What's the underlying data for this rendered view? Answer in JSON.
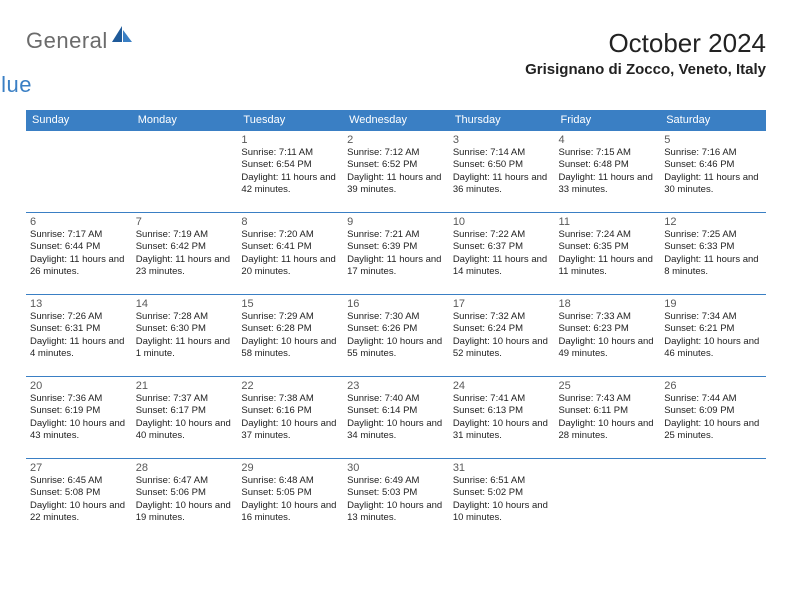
{
  "logo": {
    "general": "General",
    "blue": "Blue"
  },
  "title": "October 2024",
  "location": "Grisignano di Zocco, Veneto, Italy",
  "day_headers": [
    "Sunday",
    "Monday",
    "Tuesday",
    "Wednesday",
    "Thursday",
    "Friday",
    "Saturday"
  ],
  "colors": {
    "header_bg": "#3a7fc4",
    "header_text": "#ffffff",
    "border": "#3a7fc4",
    "day_number": "#595959",
    "text": "#222222",
    "logo_gray": "#6b6b6b",
    "logo_blue": "#3a7fc4",
    "logo_dark_blue": "#1f5a99"
  },
  "weeks": [
    [
      null,
      null,
      {
        "n": "1",
        "sunrise": "Sunrise: 7:11 AM",
        "sunset": "Sunset: 6:54 PM",
        "daylight": "Daylight: 11 hours and 42 minutes."
      },
      {
        "n": "2",
        "sunrise": "Sunrise: 7:12 AM",
        "sunset": "Sunset: 6:52 PM",
        "daylight": "Daylight: 11 hours and 39 minutes."
      },
      {
        "n": "3",
        "sunrise": "Sunrise: 7:14 AM",
        "sunset": "Sunset: 6:50 PM",
        "daylight": "Daylight: 11 hours and 36 minutes."
      },
      {
        "n": "4",
        "sunrise": "Sunrise: 7:15 AM",
        "sunset": "Sunset: 6:48 PM",
        "daylight": "Daylight: 11 hours and 33 minutes."
      },
      {
        "n": "5",
        "sunrise": "Sunrise: 7:16 AM",
        "sunset": "Sunset: 6:46 PM",
        "daylight": "Daylight: 11 hours and 30 minutes."
      }
    ],
    [
      {
        "n": "6",
        "sunrise": "Sunrise: 7:17 AM",
        "sunset": "Sunset: 6:44 PM",
        "daylight": "Daylight: 11 hours and 26 minutes."
      },
      {
        "n": "7",
        "sunrise": "Sunrise: 7:19 AM",
        "sunset": "Sunset: 6:42 PM",
        "daylight": "Daylight: 11 hours and 23 minutes."
      },
      {
        "n": "8",
        "sunrise": "Sunrise: 7:20 AM",
        "sunset": "Sunset: 6:41 PM",
        "daylight": "Daylight: 11 hours and 20 minutes."
      },
      {
        "n": "9",
        "sunrise": "Sunrise: 7:21 AM",
        "sunset": "Sunset: 6:39 PM",
        "daylight": "Daylight: 11 hours and 17 minutes."
      },
      {
        "n": "10",
        "sunrise": "Sunrise: 7:22 AM",
        "sunset": "Sunset: 6:37 PM",
        "daylight": "Daylight: 11 hours and 14 minutes."
      },
      {
        "n": "11",
        "sunrise": "Sunrise: 7:24 AM",
        "sunset": "Sunset: 6:35 PM",
        "daylight": "Daylight: 11 hours and 11 minutes."
      },
      {
        "n": "12",
        "sunrise": "Sunrise: 7:25 AM",
        "sunset": "Sunset: 6:33 PM",
        "daylight": "Daylight: 11 hours and 8 minutes."
      }
    ],
    [
      {
        "n": "13",
        "sunrise": "Sunrise: 7:26 AM",
        "sunset": "Sunset: 6:31 PM",
        "daylight": "Daylight: 11 hours and 4 minutes."
      },
      {
        "n": "14",
        "sunrise": "Sunrise: 7:28 AM",
        "sunset": "Sunset: 6:30 PM",
        "daylight": "Daylight: 11 hours and 1 minute."
      },
      {
        "n": "15",
        "sunrise": "Sunrise: 7:29 AM",
        "sunset": "Sunset: 6:28 PM",
        "daylight": "Daylight: 10 hours and 58 minutes."
      },
      {
        "n": "16",
        "sunrise": "Sunrise: 7:30 AM",
        "sunset": "Sunset: 6:26 PM",
        "daylight": "Daylight: 10 hours and 55 minutes."
      },
      {
        "n": "17",
        "sunrise": "Sunrise: 7:32 AM",
        "sunset": "Sunset: 6:24 PM",
        "daylight": "Daylight: 10 hours and 52 minutes."
      },
      {
        "n": "18",
        "sunrise": "Sunrise: 7:33 AM",
        "sunset": "Sunset: 6:23 PM",
        "daylight": "Daylight: 10 hours and 49 minutes."
      },
      {
        "n": "19",
        "sunrise": "Sunrise: 7:34 AM",
        "sunset": "Sunset: 6:21 PM",
        "daylight": "Daylight: 10 hours and 46 minutes."
      }
    ],
    [
      {
        "n": "20",
        "sunrise": "Sunrise: 7:36 AM",
        "sunset": "Sunset: 6:19 PM",
        "daylight": "Daylight: 10 hours and 43 minutes."
      },
      {
        "n": "21",
        "sunrise": "Sunrise: 7:37 AM",
        "sunset": "Sunset: 6:17 PM",
        "daylight": "Daylight: 10 hours and 40 minutes."
      },
      {
        "n": "22",
        "sunrise": "Sunrise: 7:38 AM",
        "sunset": "Sunset: 6:16 PM",
        "daylight": "Daylight: 10 hours and 37 minutes."
      },
      {
        "n": "23",
        "sunrise": "Sunrise: 7:40 AM",
        "sunset": "Sunset: 6:14 PM",
        "daylight": "Daylight: 10 hours and 34 minutes."
      },
      {
        "n": "24",
        "sunrise": "Sunrise: 7:41 AM",
        "sunset": "Sunset: 6:13 PM",
        "daylight": "Daylight: 10 hours and 31 minutes."
      },
      {
        "n": "25",
        "sunrise": "Sunrise: 7:43 AM",
        "sunset": "Sunset: 6:11 PM",
        "daylight": "Daylight: 10 hours and 28 minutes."
      },
      {
        "n": "26",
        "sunrise": "Sunrise: 7:44 AM",
        "sunset": "Sunset: 6:09 PM",
        "daylight": "Daylight: 10 hours and 25 minutes."
      }
    ],
    [
      {
        "n": "27",
        "sunrise": "Sunrise: 6:45 AM",
        "sunset": "Sunset: 5:08 PM",
        "daylight": "Daylight: 10 hours and 22 minutes."
      },
      {
        "n": "28",
        "sunrise": "Sunrise: 6:47 AM",
        "sunset": "Sunset: 5:06 PM",
        "daylight": "Daylight: 10 hours and 19 minutes."
      },
      {
        "n": "29",
        "sunrise": "Sunrise: 6:48 AM",
        "sunset": "Sunset: 5:05 PM",
        "daylight": "Daylight: 10 hours and 16 minutes."
      },
      {
        "n": "30",
        "sunrise": "Sunrise: 6:49 AM",
        "sunset": "Sunset: 5:03 PM",
        "daylight": "Daylight: 10 hours and 13 minutes."
      },
      {
        "n": "31",
        "sunrise": "Sunrise: 6:51 AM",
        "sunset": "Sunset: 5:02 PM",
        "daylight": "Daylight: 10 hours and 10 minutes."
      },
      null,
      null
    ]
  ]
}
